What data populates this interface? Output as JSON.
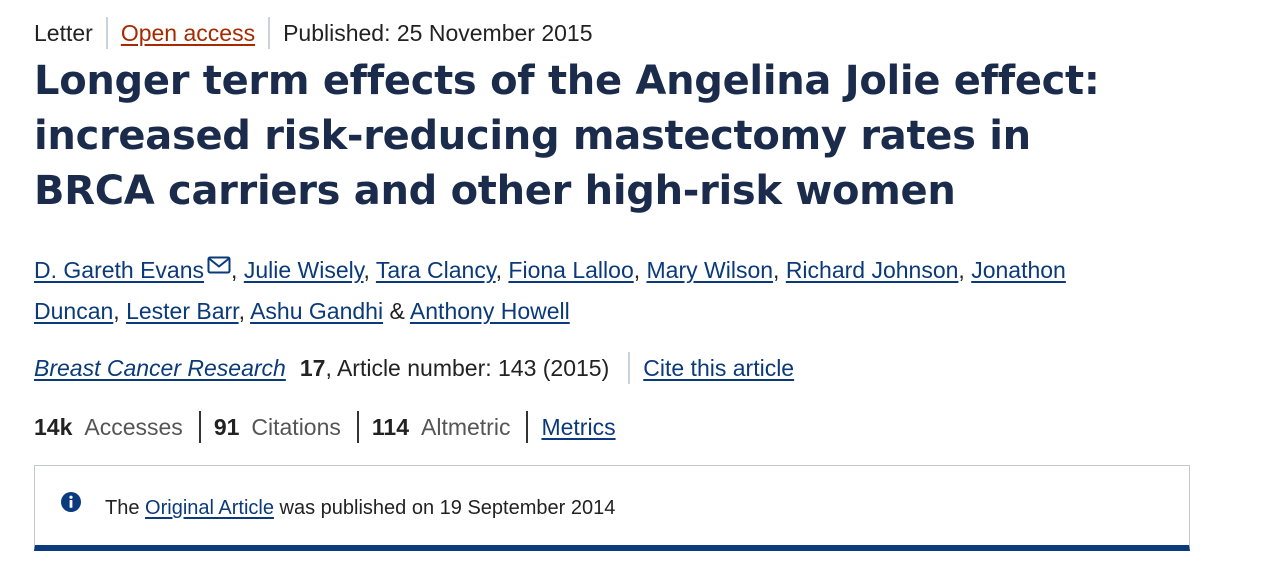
{
  "article_meta": {
    "type": "Letter",
    "access": "Open access",
    "published": "Published: 25 November 2015"
  },
  "title": "Longer term effects of the Angelina Jolie effect: increased risk-reducing mastectomy rates in BRCA carriers and other high-risk women",
  "authors": [
    "D. Gareth Evans",
    "Julie Wisely",
    "Tara Clancy",
    "Fiona Lalloo",
    "Mary Wilson",
    "Richard Johnson",
    "Jonathon Duncan",
    "Lester Barr",
    "Ashu Gandhi",
    "Anthony Howell"
  ],
  "author_separators": {
    "comma": ",",
    "and": "&"
  },
  "journal": {
    "name": "Breast Cancer Research",
    "volume": "17",
    "article_number": ", Article number: 143 (2015)",
    "cite_label": "Cite this article"
  },
  "metrics": {
    "accesses_value": "14k",
    "accesses_label": "Accesses",
    "citations_value": "91",
    "citations_label": "Citations",
    "altmetric_value": "114",
    "altmetric_label": "Altmetric",
    "metrics_link": "Metrics"
  },
  "notice": {
    "prefix": "The",
    "link": "Original Article",
    "suffix": "was published on 19 September 2014"
  },
  "colors": {
    "title": "#1b2b4b",
    "link": "#0a3a7a",
    "open_access": "#a52a00",
    "notice_border": "#0b3a7e"
  },
  "icons": {
    "author_contact": "mail-icon",
    "notice": "info-icon"
  }
}
